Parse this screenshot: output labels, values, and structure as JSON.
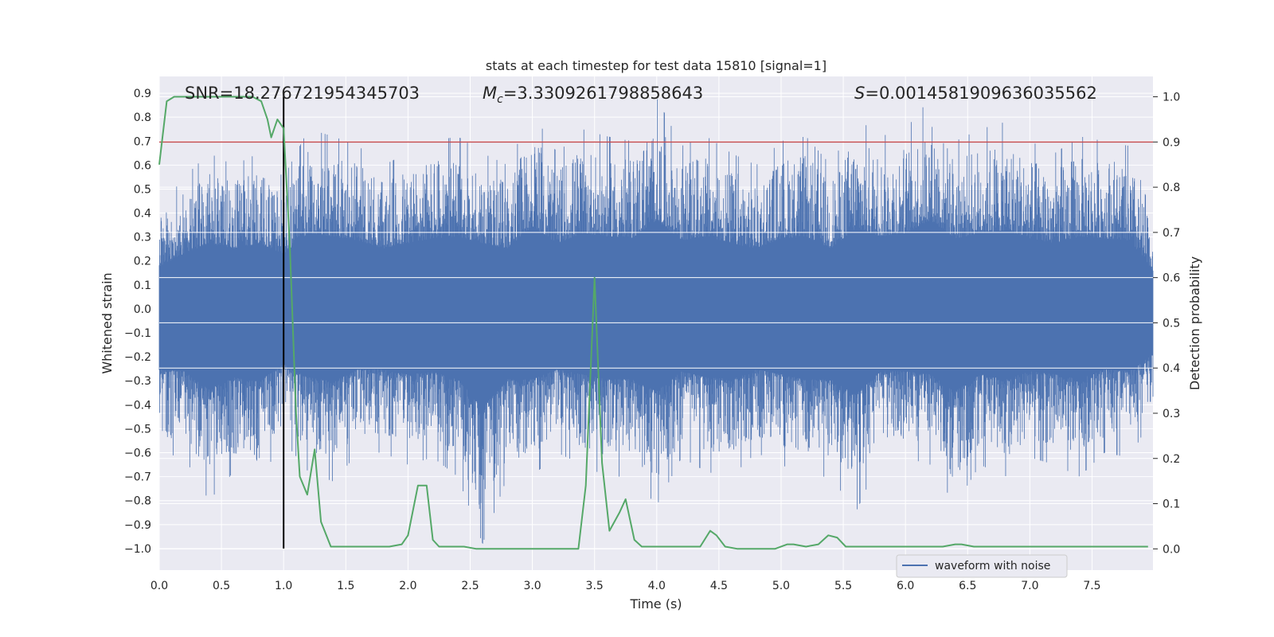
{
  "chart_data": {
    "type": "line",
    "title": "stats at each timestep for test data 15810 [signal=1]",
    "xlabel": "Time (s)",
    "ylabel": "Whitened strain",
    "y2label": "Detection probability",
    "xlim": [
      0.0,
      7.99
    ],
    "ylim": [
      -1.09,
      0.97
    ],
    "y2lim": [
      -0.047,
      1.045
    ],
    "x_ticks": [
      0.0,
      0.5,
      1.0,
      1.5,
      2.0,
      2.5,
      3.0,
      3.5,
      4.0,
      4.5,
      5.0,
      5.5,
      6.0,
      6.5,
      7.0,
      7.5
    ],
    "x_tick_labels": [
      "0.0",
      "0.5",
      "1.0",
      "1.5",
      "2.0",
      "2.5",
      "3.0",
      "3.5",
      "4.0",
      "4.5",
      "5.0",
      "5.5",
      "6.0",
      "6.5",
      "7.0",
      "7.5"
    ],
    "y_ticks": [
      -1.0,
      -0.9,
      -0.8,
      -0.7,
      -0.6,
      -0.5,
      -0.4,
      -0.3,
      -0.2,
      -0.1,
      0.0,
      0.1,
      0.2,
      0.3,
      0.4,
      0.5,
      0.6,
      0.7,
      0.8,
      0.9
    ],
    "y_tick_labels": [
      "−1.0",
      "−0.9",
      "−0.8",
      "−0.7",
      "−0.6",
      "−0.5",
      "−0.4",
      "−0.3",
      "−0.2",
      "−0.1",
      "0.0",
      "0.1",
      "0.2",
      "0.3",
      "0.4",
      "0.5",
      "0.6",
      "0.7",
      "0.8",
      "0.9"
    ],
    "y2_ticks": [
      0.0,
      0.1,
      0.2,
      0.3,
      0.4,
      0.5,
      0.6,
      0.7,
      0.8,
      0.9,
      1.0
    ],
    "y2_tick_labels": [
      "0.0",
      "0.1",
      "0.2",
      "0.3",
      "0.4",
      "0.5",
      "0.6",
      "0.7",
      "0.8",
      "0.9",
      "1.0"
    ],
    "annotations": {
      "snr": "SNR=18.276721954345703",
      "mc_symbol": "M",
      "mc_subscript": "c",
      "mc_value": "=3.3309261798858643",
      "s_symbol": "S",
      "s_value": "=0.0014581909636035562"
    },
    "legend": {
      "label": "waveform with noise",
      "position": "lower right"
    },
    "grid": true,
    "threshold": {
      "y2": 0.9,
      "color": "#c44e52"
    },
    "marker_line": {
      "x": 1.0,
      "y_from": -1.0,
      "y_to": 0.9,
      "color": "#000000"
    },
    "series": [
      {
        "name": "waveform with noise",
        "axis": "left",
        "color": "#4c72b0",
        "envelope": {
          "x": [
            0.0,
            0.2,
            0.4,
            0.6,
            0.8,
            1.0,
            1.2,
            1.4,
            1.6,
            1.8,
            2.0,
            2.2,
            2.4,
            2.6,
            2.8,
            3.0,
            3.2,
            3.4,
            3.6,
            3.8,
            4.0,
            4.2,
            4.4,
            4.6,
            4.8,
            5.0,
            5.2,
            5.4,
            5.6,
            5.8,
            6.0,
            6.2,
            6.4,
            6.6,
            6.8,
            7.0,
            7.2,
            7.4,
            7.6,
            7.8,
            7.99
          ],
          "max": [
            0.42,
            0.55,
            0.65,
            0.6,
            0.65,
            0.55,
            0.75,
            0.72,
            0.68,
            0.6,
            0.65,
            0.7,
            0.72,
            0.65,
            0.6,
            0.82,
            0.65,
            0.75,
            0.72,
            0.7,
            0.88,
            0.68,
            0.72,
            0.65,
            0.6,
            0.7,
            0.72,
            0.6,
            0.8,
            0.72,
            0.75,
            0.88,
            0.7,
            0.75,
            0.78,
            0.7,
            0.65,
            0.72,
            0.7,
            0.68,
            0.38
          ],
          "min": [
            -0.6,
            -0.62,
            -0.8,
            -0.68,
            -0.72,
            -0.55,
            -0.68,
            -0.72,
            -0.6,
            -0.6,
            -0.65,
            -0.62,
            -0.7,
            -0.98,
            -0.7,
            -0.7,
            -0.6,
            -0.65,
            -0.7,
            -0.7,
            -0.82,
            -0.62,
            -0.68,
            -0.7,
            -0.6,
            -0.65,
            -0.7,
            -0.7,
            -0.85,
            -0.62,
            -0.62,
            -0.65,
            -0.82,
            -0.65,
            -0.7,
            -0.62,
            -0.65,
            -0.7,
            -0.6,
            -0.62,
            -0.45
          ]
        }
      },
      {
        "name": "",
        "axis": "right",
        "color": "#55a868",
        "x": [
          0.0,
          0.06,
          0.12,
          0.2,
          0.3,
          0.4,
          0.5,
          0.6,
          0.7,
          0.75,
          0.82,
          0.87,
          0.9,
          0.95,
          1.0,
          1.05,
          1.1,
          1.13,
          1.19,
          1.25,
          1.3,
          1.38,
          1.45,
          1.55,
          1.7,
          1.85,
          1.95,
          2.0,
          2.08,
          2.15,
          2.2,
          2.25,
          2.35,
          2.45,
          2.55,
          2.7,
          2.85,
          3.0,
          3.2,
          3.3,
          3.37,
          3.43,
          3.5,
          3.56,
          3.62,
          3.7,
          3.75,
          3.82,
          3.88,
          4.0,
          4.2,
          4.35,
          4.43,
          4.48,
          4.55,
          4.65,
          4.8,
          4.95,
          5.05,
          5.1,
          5.2,
          5.3,
          5.38,
          5.45,
          5.52,
          5.6,
          5.7,
          5.9,
          6.1,
          6.3,
          6.4,
          6.45,
          6.55,
          6.7,
          6.9,
          7.1,
          7.4,
          7.6,
          7.8,
          7.95
        ],
        "y": [
          0.85,
          0.99,
          1.0,
          1.0,
          1.0,
          1.0,
          1.0,
          1.0,
          1.0,
          1.0,
          0.99,
          0.95,
          0.91,
          0.95,
          0.93,
          0.67,
          0.3,
          0.16,
          0.12,
          0.22,
          0.06,
          0.005,
          0.005,
          0.005,
          0.005,
          0.005,
          0.01,
          0.03,
          0.14,
          0.14,
          0.02,
          0.005,
          0.005,
          0.005,
          0.0,
          0.0,
          0.0,
          0.0,
          0.0,
          0.0,
          0.0,
          0.14,
          0.6,
          0.19,
          0.04,
          0.08,
          0.11,
          0.02,
          0.005,
          0.005,
          0.005,
          0.005,
          0.04,
          0.03,
          0.005,
          0.0,
          0.0,
          0.0,
          0.01,
          0.01,
          0.005,
          0.01,
          0.03,
          0.025,
          0.005,
          0.005,
          0.005,
          0.005,
          0.005,
          0.005,
          0.01,
          0.01,
          0.005,
          0.005,
          0.005,
          0.005,
          0.005,
          0.005,
          0.005,
          0.005
        ]
      }
    ]
  }
}
